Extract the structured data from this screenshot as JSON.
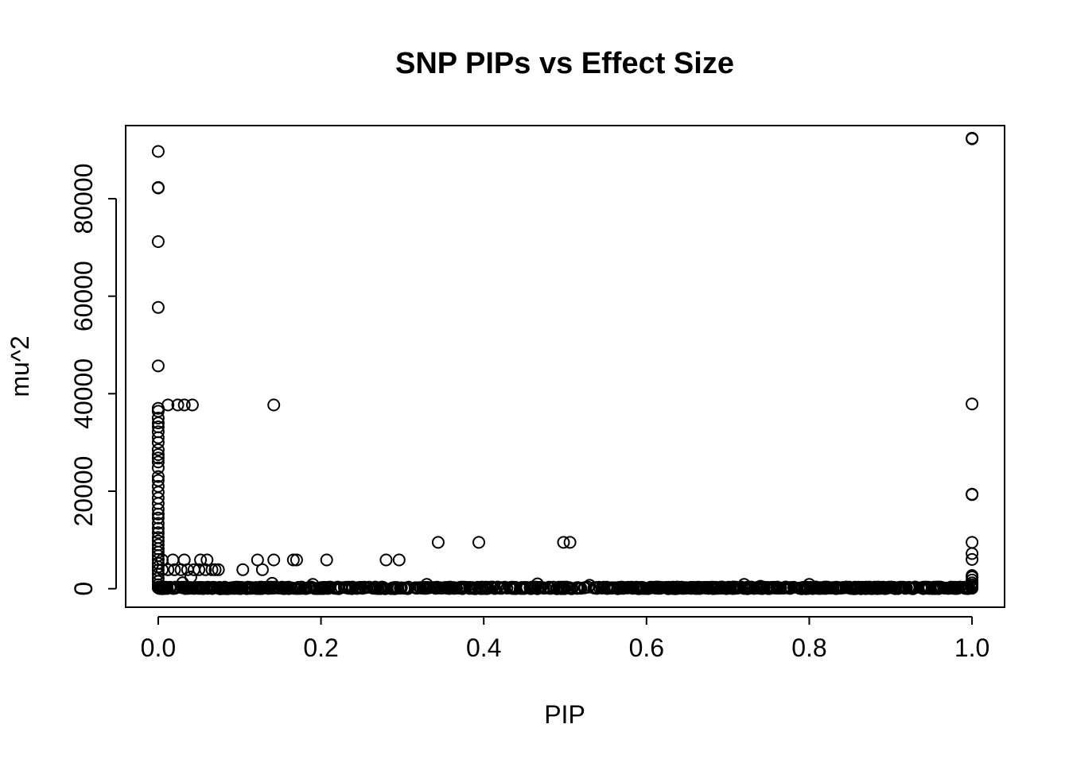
{
  "chart_data": {
    "type": "scatter",
    "title": "SNP PIPs vs Effect Size",
    "xlabel": "PIP",
    "ylabel": "mu^2",
    "xlim": [
      -0.04,
      1.04
    ],
    "ylim": [
      -3800,
      95000
    ],
    "x_ticks": [
      0.0,
      0.2,
      0.4,
      0.6,
      0.8,
      1.0
    ],
    "x_tick_labels": [
      "0.0",
      "0.2",
      "0.4",
      "0.6",
      "0.8",
      "1.0"
    ],
    "y_ticks": [
      0,
      20000,
      40000,
      60000,
      80000
    ],
    "y_tick_labels": [
      "0",
      "20000",
      "40000",
      "60000",
      "80000"
    ],
    "grid": false,
    "legend": "none",
    "marker": "open-circle",
    "series": [
      {
        "points": [
          [
            0.0,
            89700
          ],
          [
            0.0,
            82200
          ],
          [
            0.0,
            82300
          ],
          [
            0.0,
            71200
          ],
          [
            0.0,
            57700
          ],
          [
            0.0,
            45700
          ],
          [
            0.0,
            37000
          ],
          [
            0.0,
            36400
          ],
          [
            0.0,
            35000
          ],
          [
            0.0,
            34000
          ],
          [
            0.0,
            33200
          ],
          [
            0.0,
            32200
          ],
          [
            0.0,
            31000
          ],
          [
            0.0,
            30000
          ],
          [
            0.0,
            28500
          ],
          [
            0.0,
            27500
          ],
          [
            0.0,
            26800
          ],
          [
            0.0,
            26000
          ],
          [
            0.0,
            24800
          ],
          [
            0.0,
            23000
          ],
          [
            0.0,
            22200
          ],
          [
            0.0,
            21000
          ],
          [
            0.0,
            19800
          ],
          [
            0.0,
            18600
          ],
          [
            0.0,
            17500
          ],
          [
            0.0,
            16300
          ],
          [
            0.0,
            15300
          ],
          [
            0.0,
            14500
          ],
          [
            0.0,
            13400
          ],
          [
            0.0,
            12400
          ],
          [
            0.0,
            11500
          ],
          [
            0.0,
            10500
          ],
          [
            0.0,
            9800
          ],
          [
            0.0,
            9000
          ],
          [
            0.0,
            8200
          ],
          [
            0.0,
            7500
          ],
          [
            0.0,
            6800
          ],
          [
            0.0,
            6000
          ],
          [
            0.0,
            5200
          ],
          [
            0.0,
            4500
          ],
          [
            0.0,
            3800
          ],
          [
            0.0,
            3000
          ],
          [
            0.0,
            2200
          ],
          [
            0.0,
            1500
          ],
          [
            0.0,
            800
          ],
          [
            0.0,
            200
          ],
          [
            0.012,
            37700
          ],
          [
            0.024,
            37700
          ],
          [
            0.032,
            37700
          ],
          [
            0.042,
            37700
          ],
          [
            0.142,
            37700
          ],
          [
            0.005,
            5900
          ],
          [
            0.018,
            5900
          ],
          [
            0.032,
            5900
          ],
          [
            0.052,
            5900
          ],
          [
            0.06,
            5900
          ],
          [
            0.122,
            5900
          ],
          [
            0.142,
            5900
          ],
          [
            0.166,
            5900
          ],
          [
            0.17,
            5900
          ],
          [
            0.207,
            5900
          ],
          [
            0.28,
            5900
          ],
          [
            0.296,
            5900
          ],
          [
            0.005,
            3900
          ],
          [
            0.012,
            3900
          ],
          [
            0.02,
            3900
          ],
          [
            0.028,
            3900
          ],
          [
            0.036,
            3900
          ],
          [
            0.044,
            3900
          ],
          [
            0.05,
            3900
          ],
          [
            0.058,
            3900
          ],
          [
            0.066,
            3900
          ],
          [
            0.07,
            3900
          ],
          [
            0.074,
            3900
          ],
          [
            0.104,
            3900
          ],
          [
            0.128,
            3900
          ],
          [
            0.04,
            2400
          ],
          [
            0.344,
            9500
          ],
          [
            0.394,
            9500
          ],
          [
            0.498,
            9500
          ],
          [
            0.506,
            9500
          ],
          [
            0.03,
            1200
          ],
          [
            0.14,
            1100
          ],
          [
            0.19,
            900
          ],
          [
            0.33,
            900
          ],
          [
            0.466,
            1000
          ],
          [
            0.53,
            700
          ],
          [
            0.72,
            900
          ],
          [
            0.8,
            900
          ],
          [
            0.74,
            500
          ],
          [
            0.87,
            300
          ],
          [
            1.0,
            92400
          ],
          [
            1.0,
            92300
          ],
          [
            1.0,
            37900
          ],
          [
            1.0,
            19300
          ],
          [
            1.0,
            19400
          ],
          [
            1.0,
            9500
          ],
          [
            1.0,
            7200
          ],
          [
            1.0,
            6000
          ],
          [
            1.0,
            2700
          ],
          [
            1.0,
            2400
          ],
          [
            1.0,
            1800
          ],
          [
            1.0,
            1200
          ],
          [
            1.0,
            800
          ],
          [
            1.0,
            400
          ],
          [
            1.0,
            100
          ]
        ],
        "dense_baseline": {
          "x_from": 0.0,
          "x_to": 1.0,
          "y_from": 0,
          "y_to": 350,
          "count": 900
        }
      }
    ]
  }
}
